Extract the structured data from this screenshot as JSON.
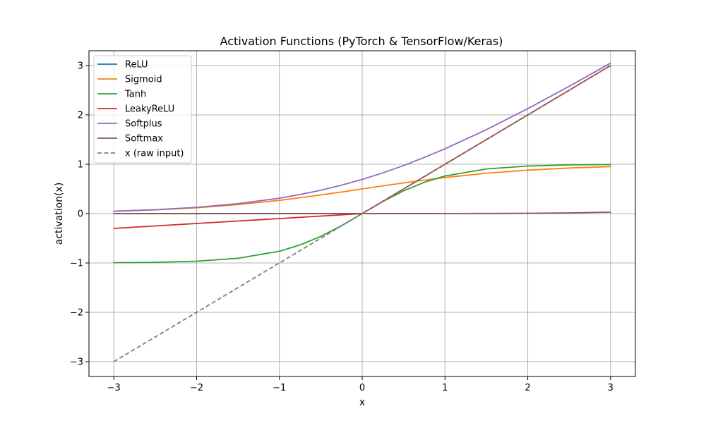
{
  "chart_data": {
    "type": "line",
    "title": "Activation Functions (PyTorch & TensorFlow/Keras)",
    "xlabel": "x",
    "ylabel": "activation(x)",
    "xlim": [
      -3.3,
      3.3
    ],
    "ylim": [
      -3.3,
      3.3
    ],
    "xticks": [
      -3,
      -2,
      -1,
      0,
      1,
      2,
      3
    ],
    "yticks": [
      -3,
      -2,
      -1,
      0,
      1,
      2,
      3
    ],
    "xtick_labels": [
      "−3",
      "−2",
      "−1",
      "0",
      "1",
      "2",
      "3"
    ],
    "ytick_labels": [
      "−3",
      "−2",
      "−1",
      "0",
      "1",
      "2",
      "3"
    ],
    "grid": true,
    "legend": "top-left",
    "x": [
      -3.0,
      -2.5,
      -2.0,
      -1.5,
      -1.0,
      -0.75,
      -0.5,
      -0.25,
      0.0,
      0.25,
      0.5,
      0.75,
      1.0,
      1.5,
      2.0,
      2.5,
      3.0
    ],
    "series": [
      {
        "name": "ReLU",
        "color": "#1f77b4",
        "dash": false,
        "values": [
          0,
          0,
          0,
          0,
          0,
          0,
          0,
          0,
          0,
          0.25,
          0.5,
          0.75,
          1.0,
          1.5,
          2.0,
          2.5,
          3.0
        ]
      },
      {
        "name": "Sigmoid",
        "color": "#ff7f0e",
        "dash": false,
        "values": [
          0.047,
          0.076,
          0.119,
          0.182,
          0.269,
          0.321,
          0.378,
          0.438,
          0.5,
          0.562,
          0.622,
          0.679,
          0.731,
          0.818,
          0.881,
          0.924,
          0.953
        ]
      },
      {
        "name": "Tanh",
        "color": "#2ca02c",
        "dash": false,
        "values": [
          -0.995,
          -0.987,
          -0.964,
          -0.905,
          -0.762,
          -0.635,
          -0.462,
          -0.245,
          0.0,
          0.245,
          0.462,
          0.635,
          0.762,
          0.905,
          0.964,
          0.987,
          0.995
        ]
      },
      {
        "name": "LeakyReLU",
        "color": "#d62728",
        "dash": false,
        "values": [
          -0.3,
          -0.25,
          -0.2,
          -0.15,
          -0.1,
          -0.075,
          -0.05,
          -0.025,
          0.0,
          0.25,
          0.5,
          0.75,
          1.0,
          1.5,
          2.0,
          2.5,
          3.0
        ]
      },
      {
        "name": "Softplus",
        "color": "#9467bd",
        "dash": false,
        "values": [
          0.049,
          0.079,
          0.127,
          0.201,
          0.313,
          0.388,
          0.474,
          0.576,
          0.693,
          0.826,
          0.974,
          1.138,
          1.313,
          1.701,
          2.127,
          2.579,
          3.049
        ]
      },
      {
        "name": "Softmax",
        "color": "#8c564b",
        "dash": false,
        "values": [
          0.0,
          0.0,
          0.0,
          0.0,
          0.0,
          0.0,
          0.0,
          0.0,
          0.001,
          0.001,
          0.001,
          0.001,
          0.002,
          0.003,
          0.006,
          0.014,
          0.03
        ]
      },
      {
        "name": "x (raw input)",
        "color": "#7f7f7f",
        "dash": true,
        "values": [
          -3.0,
          -2.5,
          -2.0,
          -1.5,
          -1.0,
          -0.75,
          -0.5,
          -0.25,
          0.0,
          0.25,
          0.5,
          0.75,
          1.0,
          1.5,
          2.0,
          2.5,
          3.0
        ]
      }
    ]
  }
}
